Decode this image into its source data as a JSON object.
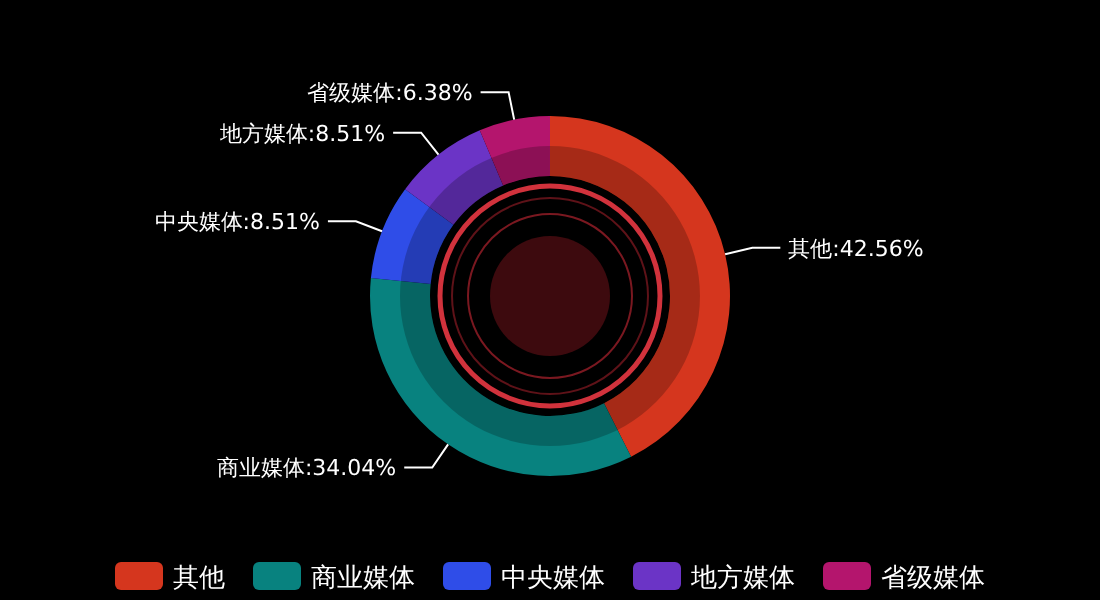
{
  "chart_data": {
    "type": "donut",
    "categories": [
      "其他",
      "商业媒体",
      "中央媒体",
      "地方媒体",
      "省级媒体"
    ],
    "values": [
      42.56,
      34.04,
      8.51,
      8.51,
      6.38
    ],
    "colors": [
      "#d5361e",
      "#08827f",
      "#2f4de8",
      "#6b34c6",
      "#b4156d"
    ],
    "value_labels": [
      "其他:42.56%",
      "商业媒体:34.04%",
      "中央媒体:8.51%",
      "地方媒体:8.51%",
      "省级媒体:6.38%"
    ],
    "legend": "bottom"
  }
}
